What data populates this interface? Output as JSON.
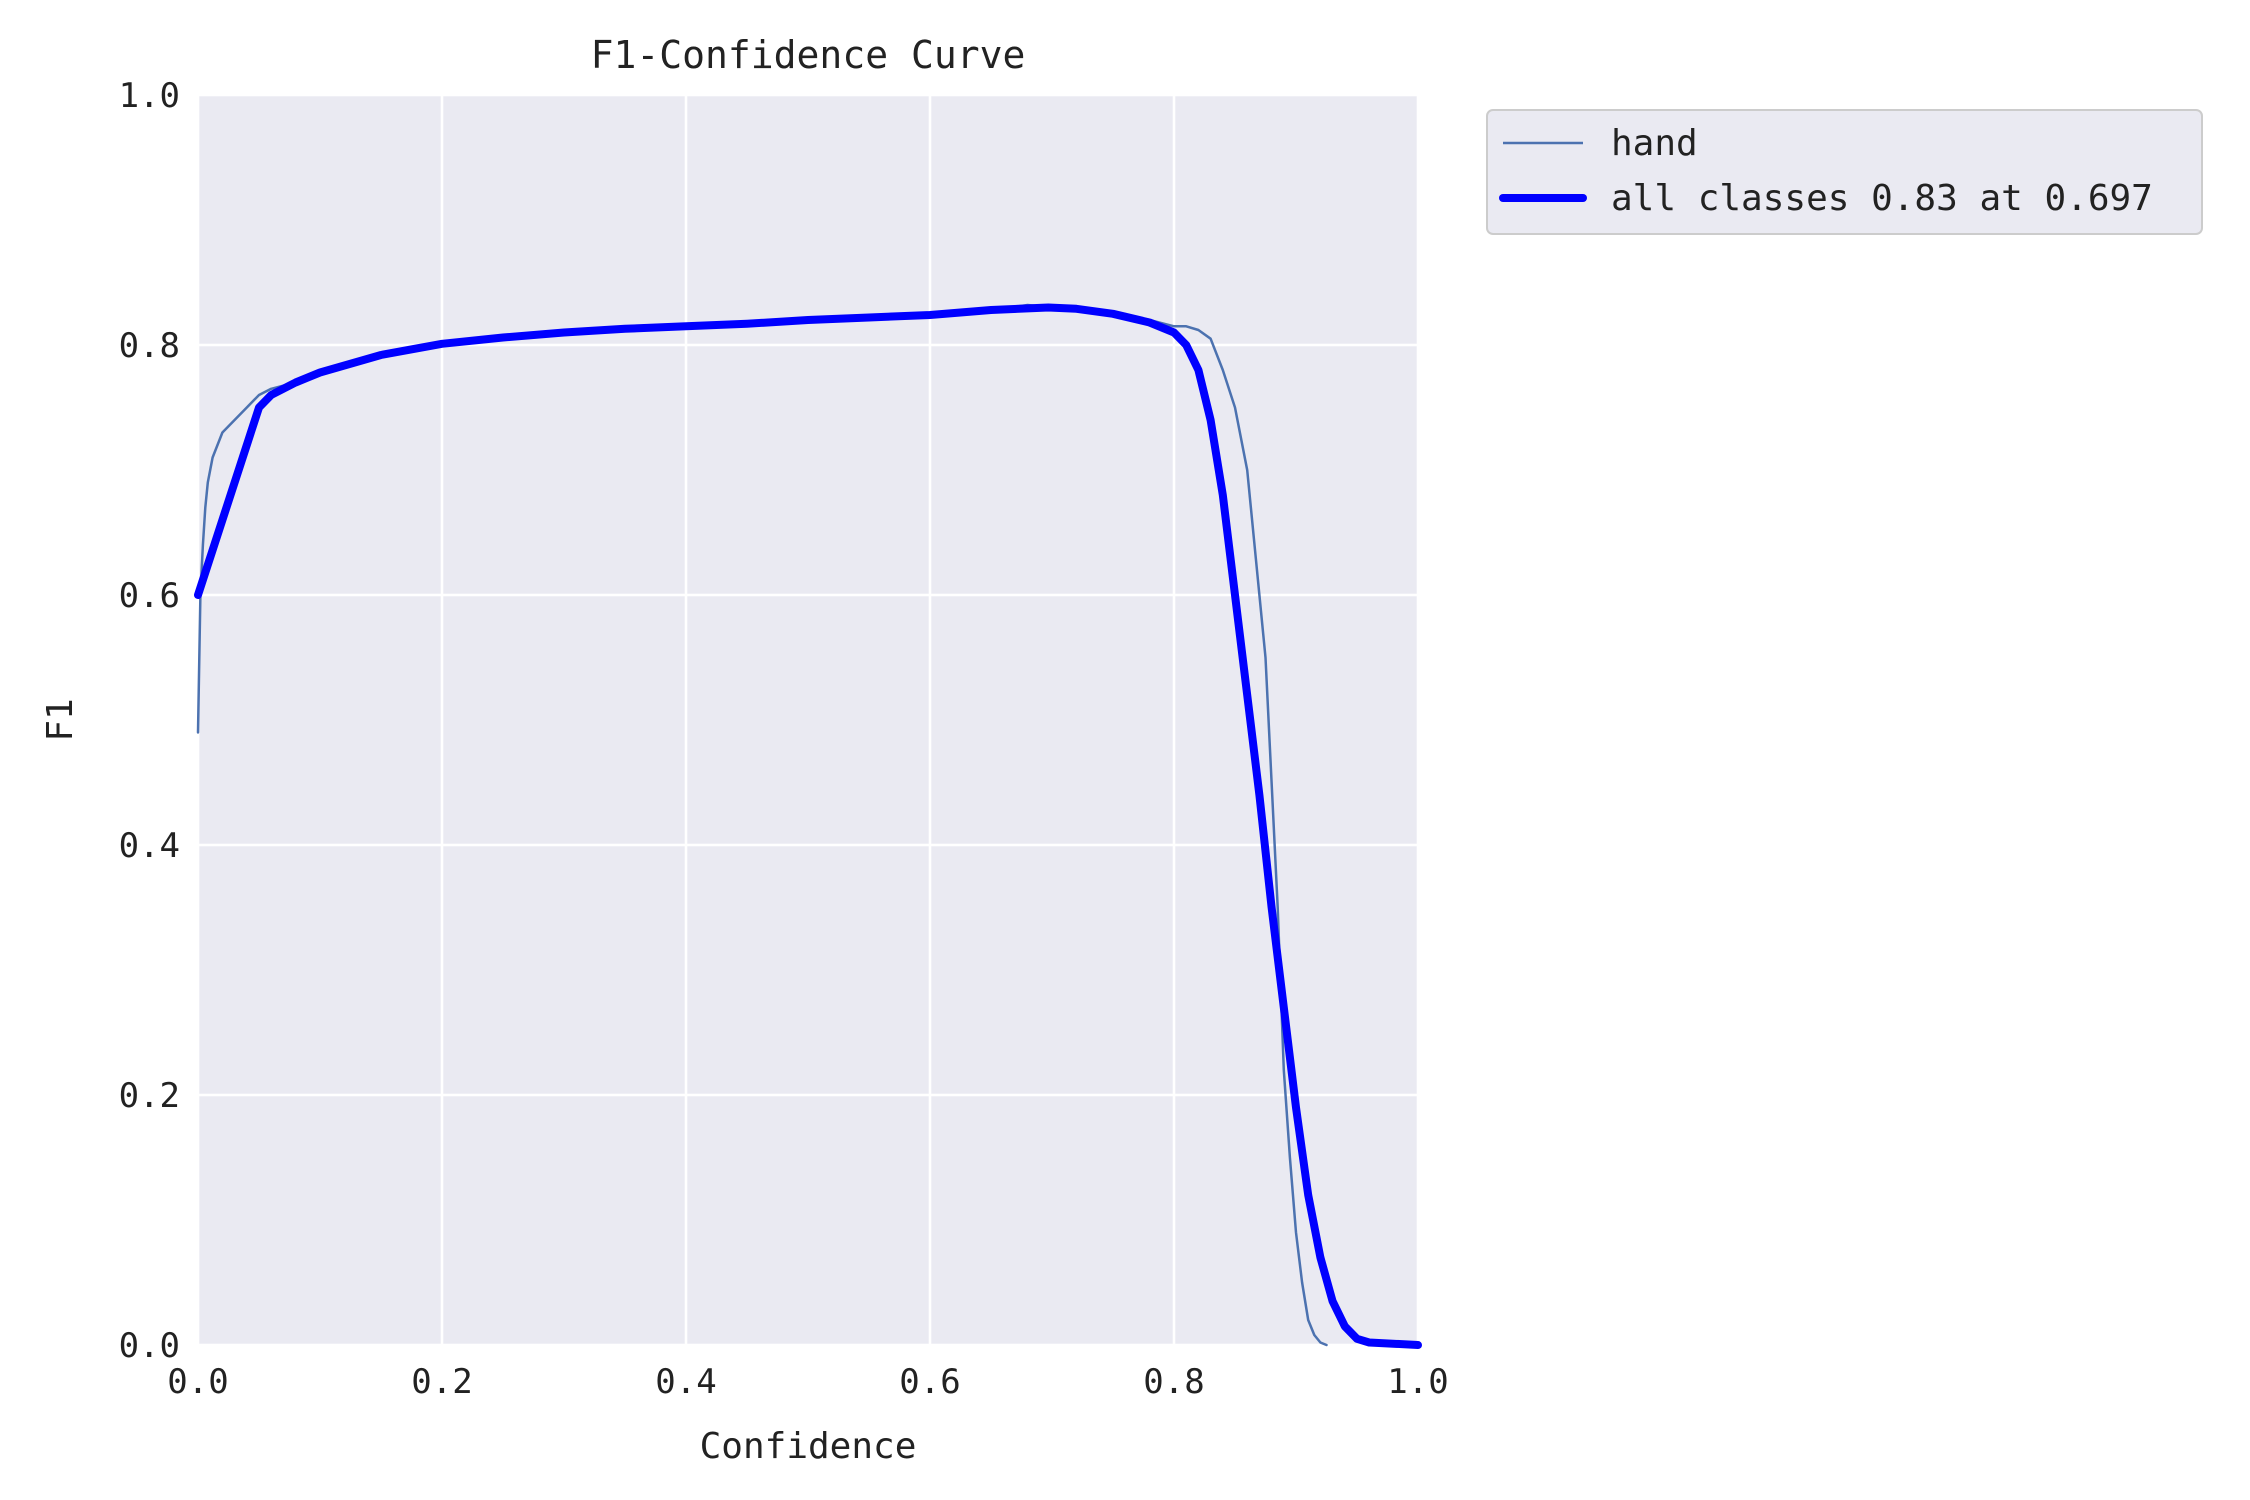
{
  "chart_data": {
    "type": "line",
    "title": "F1-Confidence Curve",
    "xlabel": "Confidence",
    "ylabel": "F1",
    "xlim": [
      0.0,
      1.0
    ],
    "ylim": [
      0.0,
      1.0
    ],
    "xticks": [
      "0.0",
      "0.2",
      "0.4",
      "0.6",
      "0.8",
      "1.0"
    ],
    "yticks": [
      "0.0",
      "0.2",
      "0.4",
      "0.6",
      "0.8",
      "1.0"
    ],
    "grid": true,
    "legend_position": "outside-top-right",
    "series": [
      {
        "name": "hand",
        "color": "#4c72b0",
        "style": "thin",
        "points": [
          [
            0.0,
            0.49
          ],
          [
            0.002,
            0.6
          ],
          [
            0.004,
            0.64
          ],
          [
            0.006,
            0.67
          ],
          [
            0.008,
            0.69
          ],
          [
            0.012,
            0.71
          ],
          [
            0.016,
            0.72
          ],
          [
            0.02,
            0.73
          ],
          [
            0.03,
            0.74
          ],
          [
            0.04,
            0.75
          ],
          [
            0.05,
            0.76
          ],
          [
            0.06,
            0.765
          ],
          [
            0.08,
            0.77
          ],
          [
            0.1,
            0.78
          ],
          [
            0.15,
            0.793
          ],
          [
            0.2,
            0.802
          ],
          [
            0.25,
            0.807
          ],
          [
            0.3,
            0.811
          ],
          [
            0.35,
            0.814
          ],
          [
            0.4,
            0.816
          ],
          [
            0.45,
            0.818
          ],
          [
            0.5,
            0.82
          ],
          [
            0.55,
            0.823
          ],
          [
            0.6,
            0.825
          ],
          [
            0.65,
            0.828
          ],
          [
            0.68,
            0.832
          ],
          [
            0.7,
            0.83
          ],
          [
            0.75,
            0.827
          ],
          [
            0.78,
            0.82
          ],
          [
            0.8,
            0.815
          ],
          [
            0.81,
            0.815
          ],
          [
            0.82,
            0.812
          ],
          [
            0.83,
            0.805
          ],
          [
            0.84,
            0.78
          ],
          [
            0.85,
            0.75
          ],
          [
            0.86,
            0.7
          ],
          [
            0.87,
            0.6
          ],
          [
            0.875,
            0.55
          ],
          [
            0.88,
            0.45
          ],
          [
            0.885,
            0.35
          ],
          [
            0.89,
            0.22
          ],
          [
            0.895,
            0.15
          ],
          [
            0.9,
            0.09
          ],
          [
            0.905,
            0.05
          ],
          [
            0.91,
            0.02
          ],
          [
            0.915,
            0.008
          ],
          [
            0.92,
            0.002
          ],
          [
            0.925,
            0.0
          ]
        ]
      },
      {
        "name": "all classes 0.83 at 0.697",
        "color": "#0000ff",
        "style": "thick",
        "points": [
          [
            0.0,
            0.6
          ],
          [
            0.05,
            0.75
          ],
          [
            0.06,
            0.76
          ],
          [
            0.08,
            0.77
          ],
          [
            0.1,
            0.778
          ],
          [
            0.15,
            0.792
          ],
          [
            0.2,
            0.801
          ],
          [
            0.25,
            0.806
          ],
          [
            0.3,
            0.81
          ],
          [
            0.35,
            0.813
          ],
          [
            0.4,
            0.815
          ],
          [
            0.45,
            0.817
          ],
          [
            0.5,
            0.82
          ],
          [
            0.55,
            0.822
          ],
          [
            0.6,
            0.824
          ],
          [
            0.65,
            0.828
          ],
          [
            0.697,
            0.83
          ],
          [
            0.72,
            0.829
          ],
          [
            0.75,
            0.825
          ],
          [
            0.78,
            0.818
          ],
          [
            0.8,
            0.81
          ],
          [
            0.81,
            0.8
          ],
          [
            0.82,
            0.78
          ],
          [
            0.83,
            0.74
          ],
          [
            0.84,
            0.68
          ],
          [
            0.85,
            0.6
          ],
          [
            0.86,
            0.52
          ],
          [
            0.87,
            0.44
          ],
          [
            0.88,
            0.35
          ],
          [
            0.89,
            0.27
          ],
          [
            0.9,
            0.19
          ],
          [
            0.91,
            0.12
          ],
          [
            0.92,
            0.07
          ],
          [
            0.93,
            0.035
          ],
          [
            0.94,
            0.015
          ],
          [
            0.95,
            0.005
          ],
          [
            0.96,
            0.002
          ],
          [
            1.0,
            0.0
          ]
        ]
      }
    ]
  }
}
